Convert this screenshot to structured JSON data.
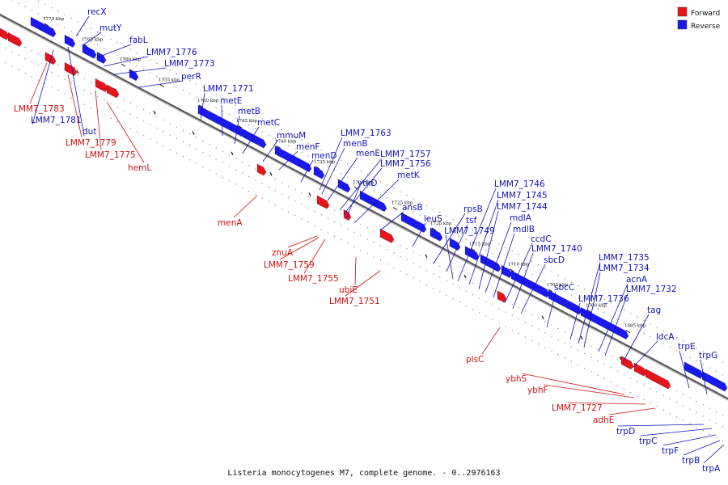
{
  "colors": {
    "forward": "#e8141b",
    "reverse": "#1a19ee",
    "forward_label": "#cc1111",
    "reverse_label": "#1111bb"
  },
  "caption": "Listeria monocytogenes M7, complete genome. - 0..2976163",
  "legend": [
    {
      "label": "Forward",
      "color": "#e8141b"
    },
    {
      "label": "Reverse",
      "color": "#1a19ee"
    }
  ],
  "ticks": [
    "1770 kbp",
    "1765 kbp",
    "1760 kbp",
    "1755 kbp",
    "1750 kbp",
    "1745 kbp",
    "1740 kbp",
    "1735 kbp",
    "1730 kbp",
    "1725 kbp",
    "1720 kbp",
    "1715 kbp",
    "1710 kbp",
    "1705 kbp",
    "1700 kbp",
    "1695 kbp"
  ],
  "reverse_genes": [
    "recX",
    "mutY",
    "fabL",
    "LMM7_1776",
    "LMM7_1773",
    "perR",
    "LMM7_1771",
    "metE",
    "metB",
    "metC",
    "mmuM",
    "menF",
    "menD",
    "LMM7_1763",
    "menB",
    "menE",
    "LMM7_1757",
    "LMM7_1756",
    "ytkD",
    "metK",
    "ansB",
    "leuS",
    "rpsB",
    "tsf",
    "LMM7_1749",
    "LMM7_1746",
    "LMM7_1745",
    "LMM7_1744",
    "mdlA",
    "mdlB",
    "ccdC",
    "LMM7_1740",
    "sbcD",
    "sbcC",
    "LMM7_1736",
    "LMM7_1735",
    "LMM7_1734",
    "acnA",
    "LMM7_1732",
    "tag",
    "ldcA",
    "trpE",
    "trpG",
    "LMM7_1781",
    "dut",
    "trpD",
    "trpC",
    "trpF",
    "trpB",
    "trpA"
  ],
  "forward_genes": [
    "LMM7_1783",
    "LMM7_1779",
    "LMM7_1775",
    "hemL",
    "menA",
    "znuA",
    "LMM7_1759",
    "LMM7_1755",
    "ubiE",
    "LMM7_1751",
    "plsC",
    "ybhS",
    "ybhF",
    "LMM7_1727",
    "adhE"
  ]
}
